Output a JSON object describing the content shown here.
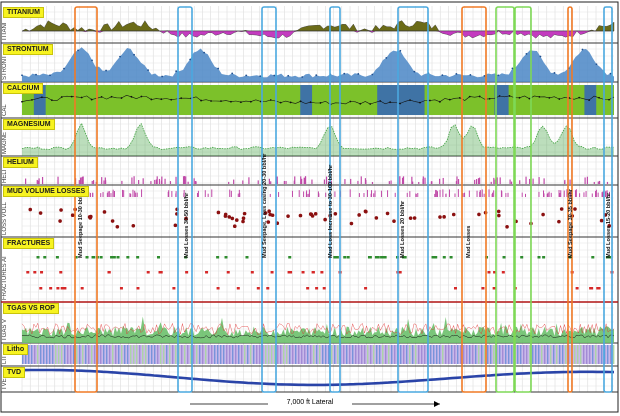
{
  "tracks": [
    {
      "key": "titanium",
      "label": "TITANIUM",
      "side": "TITANI"
    },
    {
      "key": "strontium",
      "label": "STRONTIUM",
      "side": "STRONT"
    },
    {
      "key": "calcium",
      "label": "CALCIUM",
      "side": "CAL"
    },
    {
      "key": "magnesium",
      "label": "MAGNESIUM",
      "side": "MAGNE"
    },
    {
      "key": "helium",
      "label": "HELIUM",
      "side": "HELI"
    },
    {
      "key": "mudloss",
      "label": "MUD VOLUME LOSSES",
      "side": "LOSS VOLL"
    },
    {
      "key": "fractures",
      "label": "FRACTURES",
      "side": "FRACTURES AI"
    },
    {
      "key": "tgas",
      "label": "TGAS VS ROP",
      "side": "TGAS V"
    },
    {
      "key": "litho",
      "label": "Litho",
      "side": "LITH"
    },
    {
      "key": "tvd",
      "label": "TVD",
      "side": "TVE"
    }
  ],
  "annotations": [
    "Mud Seepage 10-30 bbl/hr",
    "Mud Losses 30-50 bbl/hr",
    "Mud Seepage, Loss casing 20-30 bbl/hr",
    "Mud Loss Increase to 30-100 bbl/hr",
    "Mud Losses 20 bbl/hr",
    "Mud Losses",
    "Mud Seepage 30-35 bbl/hr",
    "Mud Losses 15-20 bbl/hr"
  ],
  "footer": {
    "lateral_label": "7,000 ft Lateral"
  },
  "colors": {
    "label_bg": "#f7f320",
    "titanium_fill": "#6b6b18",
    "titanium_neg": "#c33bbf",
    "strontium": "#4a86c6",
    "calcium": "#7cc12a",
    "magnesium": "#3fa03f",
    "helium": "#c04aa8",
    "mudloss": "#8b1010",
    "fracture_green": "#2f8c2f",
    "fracture_red": "#d62828",
    "tvd": "#2a44a8",
    "box_orange": "#f07a25",
    "box_blue": "#4aa8df",
    "box_green": "#7ed957"
  }
}
